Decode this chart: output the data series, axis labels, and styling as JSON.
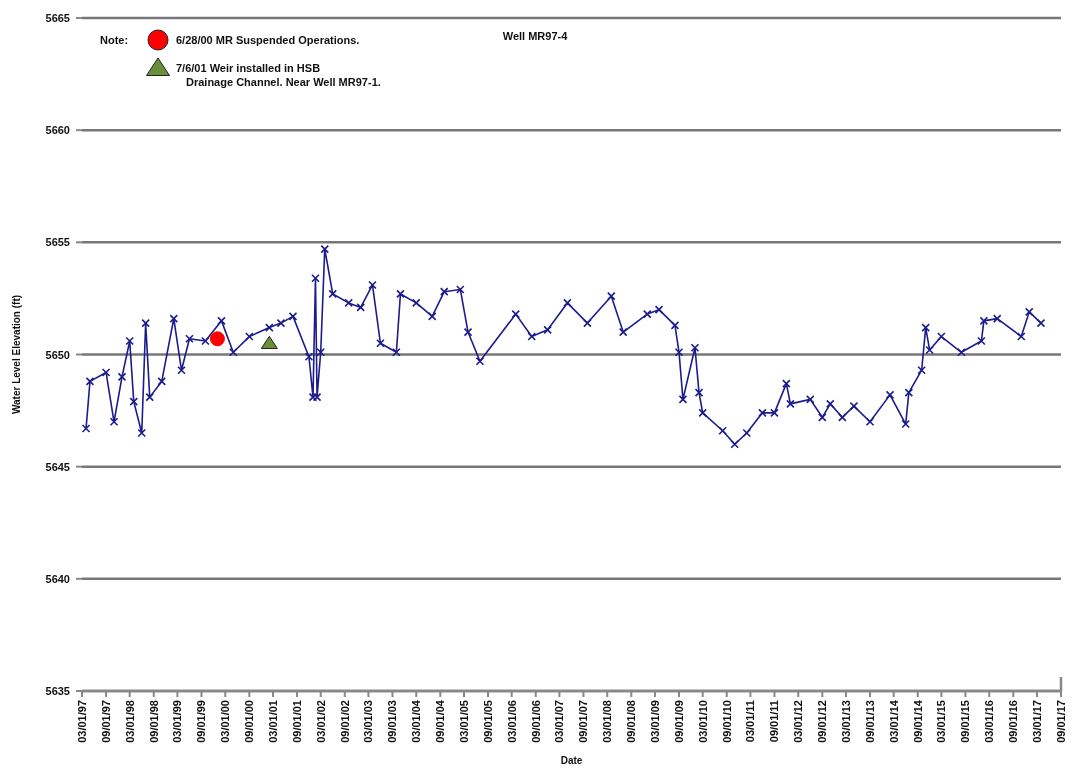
{
  "chart_data": {
    "type": "line",
    "title": "Well MR97-4",
    "xlabel": "Date",
    "ylabel": "Water Level Elevation (ft)",
    "legend_title": "Note:",
    "legend": "top left",
    "grid": "y",
    "xlim": [
      "1997-03-01",
      "2017-09-01"
    ],
    "xticks": [
      {
        "value": "1997-03-01",
        "label": "03/01/97"
      },
      {
        "value": "1997-09-01",
        "label": "09/01/97"
      },
      {
        "value": "1998-03-01",
        "label": "03/01/98"
      },
      {
        "value": "1998-09-01",
        "label": "09/01/98"
      },
      {
        "value": "1999-03-01",
        "label": "03/01/99"
      },
      {
        "value": "1999-09-01",
        "label": "09/01/99"
      },
      {
        "value": "2000-03-01",
        "label": "03/01/00"
      },
      {
        "value": "2000-09-01",
        "label": "09/01/00"
      },
      {
        "value": "2001-03-01",
        "label": "03/01/01"
      },
      {
        "value": "2001-09-01",
        "label": "09/01/01"
      },
      {
        "value": "2002-03-01",
        "label": "03/01/02"
      },
      {
        "value": "2002-09-01",
        "label": "09/01/02"
      },
      {
        "value": "2003-03-01",
        "label": "03/01/03"
      },
      {
        "value": "2003-09-01",
        "label": "09/01/03"
      },
      {
        "value": "2004-03-01",
        "label": "03/01/04"
      },
      {
        "value": "2004-09-01",
        "label": "09/01/04"
      },
      {
        "value": "2005-03-01",
        "label": "03/01/05"
      },
      {
        "value": "2005-09-01",
        "label": "09/01/05"
      },
      {
        "value": "2006-03-01",
        "label": "03/01/06"
      },
      {
        "value": "2006-09-01",
        "label": "09/01/06"
      },
      {
        "value": "2007-03-01",
        "label": "03/01/07"
      },
      {
        "value": "2007-09-01",
        "label": "09/01/07"
      },
      {
        "value": "2008-03-01",
        "label": "03/01/08"
      },
      {
        "value": "2008-09-01",
        "label": "09/01/08"
      },
      {
        "value": "2009-03-01",
        "label": "03/01/09"
      },
      {
        "value": "2009-09-01",
        "label": "09/01/09"
      },
      {
        "value": "2010-03-01",
        "label": "03/01/10"
      },
      {
        "value": "2010-09-01",
        "label": "09/01/10"
      },
      {
        "value": "2011-03-01",
        "label": "03/01/11"
      },
      {
        "value": "2011-09-01",
        "label": "09/01/11"
      },
      {
        "value": "2012-03-01",
        "label": "03/01/12"
      },
      {
        "value": "2012-09-01",
        "label": "09/01/12"
      },
      {
        "value": "2013-03-01",
        "label": "03/01/13"
      },
      {
        "value": "2013-09-01",
        "label": "09/01/13"
      },
      {
        "value": "2014-03-01",
        "label": "03/01/14"
      },
      {
        "value": "2014-09-01",
        "label": "09/01/14"
      },
      {
        "value": "2015-03-01",
        "label": "03/01/15"
      },
      {
        "value": "2015-09-01",
        "label": "09/01/15"
      },
      {
        "value": "2016-03-01",
        "label": "03/01/16"
      },
      {
        "value": "2016-09-01",
        "label": "09/01/16"
      },
      {
        "value": "2017-03-01",
        "label": "03/01/17"
      },
      {
        "value": "2017-09-01",
        "label": "09/01/17"
      }
    ],
    "ylim": [
      5635,
      5665
    ],
    "yticks": [
      5635,
      5640,
      5645,
      5650,
      5655,
      5660,
      5665
    ],
    "series": [
      {
        "color": "#1c1c8c",
        "marker": "cross",
        "x": [
          "1997-04",
          "1997-05",
          "1997-09",
          "1997-11",
          "1998-01",
          "1998-03",
          "1998-04",
          "1998-06",
          "1998-07",
          "1998-08",
          "1998-11",
          "1999-02",
          "1999-04",
          "1999-06",
          "1999-10",
          "2000-02",
          "2000-05",
          "2000-09",
          "2001-02",
          "2001-05",
          "2001-08",
          "2001-12",
          "2002-01",
          "2002-01-20",
          "2002-02",
          "2002-03",
          "2002-04",
          "2002-06",
          "2002-10",
          "2003-01",
          "2003-04",
          "2003-06",
          "2003-10",
          "2003-11",
          "2004-03",
          "2004-07",
          "2004-10",
          "2005-02",
          "2005-04",
          "2005-07",
          "2006-04",
          "2006-08",
          "2006-12",
          "2007-05",
          "2007-10",
          "2008-04",
          "2008-07",
          "2009-01",
          "2009-04",
          "2009-08",
          "2009-09",
          "2009-10",
          "2010-01",
          "2010-02",
          "2010-03",
          "2010-08",
          "2010-11",
          "2011-02",
          "2011-06",
          "2011-09",
          "2011-12",
          "2012-01",
          "2012-06",
          "2012-09",
          "2012-11",
          "2013-02",
          "2013-05",
          "2013-09",
          "2014-02",
          "2014-06",
          "2014-06-25",
          "2014-10",
          "2014-11",
          "2014-12",
          "2015-03",
          "2015-08",
          "2016-01",
          "2016-01-20",
          "2016-05",
          "2016-11",
          "2017-01",
          "2017-04"
        ],
        "values": [
          5646.7,
          5648.8,
          5649.2,
          5647.0,
          5649.0,
          5650.6,
          5647.9,
          5646.5,
          5651.4,
          5648.1,
          5648.8,
          5651.6,
          5649.3,
          5650.7,
          5650.6,
          5651.5,
          5650.1,
          5650.8,
          5651.2,
          5651.4,
          5651.7,
          5649.9,
          5648.1,
          5653.4,
          5648.1,
          5650.1,
          5654.7,
          5652.7,
          5652.3,
          5652.1,
          5653.1,
          5650.5,
          5650.1,
          5652.7,
          5652.3,
          5651.7,
          5652.8,
          5652.9,
          5651.0,
          5649.7,
          5651.8,
          5650.8,
          5651.1,
          5652.3,
          5651.4,
          5652.6,
          5651.0,
          5651.8,
          5652.0,
          5651.3,
          5650.1,
          5648.0,
          5650.3,
          5648.3,
          5647.4,
          5646.6,
          5646.0,
          5646.5,
          5647.4,
          5647.4,
          5648.7,
          5647.8,
          5648.0,
          5647.2,
          5647.8,
          5647.2,
          5647.7,
          5647.0,
          5648.2,
          5646.9,
          5648.3,
          5649.3,
          5651.2,
          5650.2,
          5650.8,
          5650.1,
          5650.6,
          5651.5,
          5651.6,
          5650.8,
          5651.9,
          5651.4
        ]
      },
      {
        "type": "scatter",
        "name": "6/28/00 MR Suspended Operations.",
        "color": "#ff0000",
        "marker": "circle",
        "x": [
          "2000-01"
        ],
        "values": [
          5650.7
        ]
      },
      {
        "type": "scatter",
        "name": "7/6/01 Weir installed in HSB Drainage Channel. Near Well MR97-1.",
        "color": "#6b8e3a",
        "marker": "triangle",
        "x": [
          "2001-02"
        ],
        "values": [
          5650.5
        ]
      }
    ]
  }
}
